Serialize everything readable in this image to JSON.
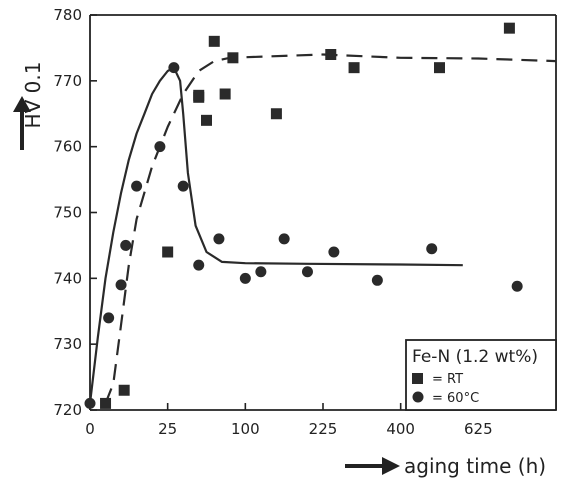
{
  "chart_data": {
    "type": "scatter",
    "xlabel": "aging time (h)",
    "ylabel": "HV 0.1",
    "x_ticks": [
      "0",
      "25",
      "100",
      "225",
      "400",
      "625"
    ],
    "y_ticks": [
      "720",
      "730",
      "740",
      "750",
      "760",
      "770",
      "780"
    ],
    "xlim": [
      0,
      30
    ],
    "ylim": [
      720,
      780
    ],
    "legend": {
      "title": "Fe-N (1.2 wt%)",
      "entries": [
        {
          "label": "= RT",
          "marker": "square"
        },
        {
          "label": "= 60°C",
          "marker": "circle"
        }
      ],
      "position": "bottom-right"
    },
    "series": [
      {
        "label": "= RT",
        "marker": "square",
        "points": [
          [
            1.0,
            721
          ],
          [
            2.2,
            723
          ],
          [
            5.0,
            744
          ],
          [
            7.0,
            767.5
          ],
          [
            7.5,
            764
          ],
          [
            8.0,
            776
          ],
          [
            8.7,
            768
          ],
          [
            9.2,
            773.5
          ],
          [
            12.0,
            765
          ],
          [
            15.5,
            774
          ],
          [
            17.0,
            772
          ],
          [
            22.5,
            772
          ],
          [
            27.0,
            778
          ],
          [
            7.0,
            767.8
          ]
        ]
      },
      {
        "label": "= 60°C",
        "marker": "circle",
        "points": [
          [
            0.0,
            721
          ],
          [
            1.2,
            734
          ],
          [
            2.0,
            739
          ],
          [
            2.3,
            745
          ],
          [
            3.0,
            754
          ],
          [
            4.5,
            760
          ],
          [
            5.4,
            772
          ],
          [
            6.0,
            754
          ],
          [
            7.0,
            742
          ],
          [
            8.3,
            746
          ],
          [
            10.0,
            740
          ],
          [
            11.0,
            741
          ],
          [
            12.5,
            746
          ],
          [
            14.0,
            741
          ],
          [
            15.7,
            744
          ],
          [
            18.5,
            739.7
          ],
          [
            22.0,
            744.5
          ],
          [
            27.5,
            738.8
          ]
        ]
      }
    ],
    "fit_curves": [
      {
        "series": "= RT",
        "style": "dashed",
        "points": [
          [
            1.0,
            721
          ],
          [
            1.5,
            724
          ],
          [
            2.0,
            733
          ],
          [
            2.5,
            742
          ],
          [
            3.0,
            749
          ],
          [
            3.5,
            753
          ],
          [
            4.0,
            757
          ],
          [
            5.0,
            763
          ],
          [
            6.0,
            768
          ],
          [
            7.0,
            771.5
          ],
          [
            8.0,
            773
          ],
          [
            9.0,
            773.5
          ],
          [
            15.0,
            774
          ],
          [
            20.0,
            773.5
          ],
          [
            25.0,
            773.4
          ],
          [
            30.0,
            773
          ]
        ]
      },
      {
        "series": "= 60°C",
        "style": "solid",
        "points": [
          [
            0.0,
            721
          ],
          [
            0.5,
            731
          ],
          [
            1.0,
            740
          ],
          [
            1.5,
            747
          ],
          [
            2.0,
            753
          ],
          [
            2.5,
            758
          ],
          [
            3.0,
            762
          ],
          [
            3.5,
            765
          ],
          [
            4.0,
            768
          ],
          [
            4.5,
            770
          ],
          [
            5.0,
            771.5
          ],
          [
            5.4,
            772
          ],
          [
            5.8,
            770
          ],
          [
            6.0,
            765
          ],
          [
            6.3,
            756
          ],
          [
            6.8,
            748
          ],
          [
            7.5,
            744
          ],
          [
            8.5,
            742.5
          ],
          [
            10.0,
            742.3
          ],
          [
            14.0,
            742.2
          ],
          [
            20.0,
            742.1
          ],
          [
            24.0,
            742
          ]
        ]
      }
    ]
  }
}
